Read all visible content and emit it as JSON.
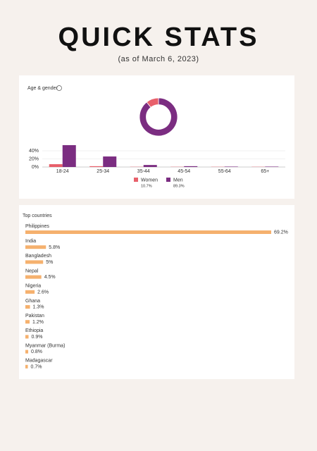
{
  "header": {
    "title": "QUICK STATS",
    "subtitle": "(as of March 6, 2023)"
  },
  "chart_data": [
    {
      "type": "donut",
      "title": "Age & gender",
      "values": [
        10.7,
        89.3
      ],
      "value_labels": [
        "10.7%",
        "89.3%"
      ],
      "colors": [
        "#e8606b",
        "#7b2d81"
      ]
    },
    {
      "type": "bar",
      "categories": [
        "18-24",
        "25-34",
        "35-44",
        "45-54",
        "55-64",
        "65+"
      ],
      "series": [
        {
          "name": "Women",
          "color": "#e8606b",
          "values": [
            7,
            2,
            0.5,
            0.5,
            0.5,
            0.5
          ]
        },
        {
          "name": "Men",
          "color": "#7b2d81",
          "values": [
            54,
            26,
            5,
            2,
            1,
            1
          ]
        }
      ],
      "ylim": [
        0,
        55
      ],
      "yticks": [
        {
          "value": 0,
          "label": "0%"
        },
        {
          "value": 20,
          "label": "20%"
        },
        {
          "value": 40,
          "label": "40%"
        }
      ],
      "grid": true
    },
    {
      "type": "hbar",
      "title": "Top countries",
      "categories": [
        "Philippines",
        "India",
        "Bangladesh",
        "Nepal",
        "Nigeria",
        "Ghana",
        "Pakistan",
        "Ethiopia",
        "Myanmar (Burma)",
        "Madagascar"
      ],
      "values": [
        69.2,
        5.8,
        5,
        4.5,
        2.6,
        1.3,
        1.2,
        0.9,
        0.8,
        0.7
      ],
      "value_labels": [
        "69.2%",
        "5.8%",
        "5%",
        "4.5%",
        "2.6%",
        "1.3%",
        "1.2%",
        "0.9%",
        "0.8%",
        "0.7%"
      ],
      "color": "#f5b16e"
    }
  ]
}
